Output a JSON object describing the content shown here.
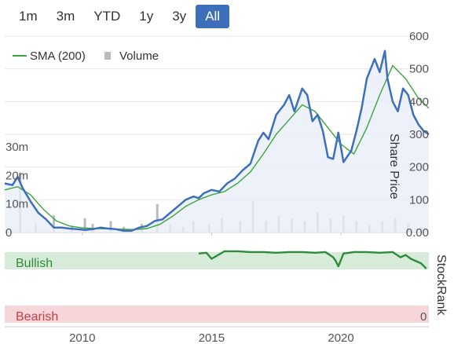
{
  "range_buttons": [
    {
      "label": "1m",
      "active": false
    },
    {
      "label": "3m",
      "active": false
    },
    {
      "label": "YTD",
      "active": false
    },
    {
      "label": "1y",
      "active": false
    },
    {
      "label": "3y",
      "active": false
    },
    {
      "label": "All",
      "active": true
    }
  ],
  "legend": {
    "sma_label": "SMA (200)",
    "volume_label": "Volume"
  },
  "stockrank": {
    "title": "StockRank",
    "bullish_label": "Bullish",
    "bearish_label": "Bearish",
    "zero_label": "0"
  },
  "colors": {
    "price": "#3e6fba",
    "sma": "#3aa63a",
    "volume": "#bbbbbb",
    "bullish": "#d6ecd8",
    "bearish": "#f6d6d8",
    "rank": "#2f8a3c",
    "active_button": "#3e6fba"
  },
  "chart_data": {
    "type": "line",
    "title": "",
    "x_ticks": [
      "2010",
      "2015",
      "2020"
    ],
    "xlim": [
      2007.0,
      2023.4
    ],
    "price_axis": {
      "title": "Share Price",
      "ticks": [
        "0.00",
        "100",
        "200",
        "300",
        "400",
        "500",
        "600"
      ],
      "ylim": [
        0,
        600
      ]
    },
    "volume_axis": {
      "ticks": [
        "0",
        "10m",
        "20m",
        "30m"
      ],
      "ylim": [
        0,
        30
      ]
    },
    "series": [
      {
        "name": "Share Price",
        "x": [
          2007.0,
          2007.3,
          2007.5,
          2007.7,
          2008.0,
          2008.3,
          2008.6,
          2008.9,
          2009.2,
          2009.5,
          2009.8,
          2010.1,
          2010.4,
          2010.7,
          2011.0,
          2011.3,
          2011.6,
          2011.9,
          2012.2,
          2012.5,
          2012.8,
          2013.1,
          2013.4,
          2013.7,
          2014.0,
          2014.3,
          2014.5,
          2014.7,
          2015.0,
          2015.3,
          2015.6,
          2015.9,
          2016.2,
          2016.5,
          2016.8,
          2017.0,
          2017.2,
          2017.5,
          2017.8,
          2018.0,
          2018.2,
          2018.5,
          2018.7,
          2018.9,
          2019.1,
          2019.3,
          2019.5,
          2019.7,
          2019.9,
          2020.1,
          2020.4,
          2020.6,
          2020.8,
          2021.0,
          2021.3,
          2021.5,
          2021.7,
          2021.8,
          2022.0,
          2022.2,
          2022.4,
          2022.6,
          2022.8,
          2023.0,
          2023.2,
          2023.4
        ],
        "values": [
          150,
          145,
          170,
          135,
          95,
          60,
          40,
          15,
          15,
          12,
          10,
          8,
          10,
          15,
          12,
          10,
          5,
          5,
          15,
          20,
          35,
          40,
          60,
          80,
          100,
          110,
          105,
          120,
          130,
          125,
          150,
          165,
          190,
          210,
          280,
          305,
          285,
          360,
          390,
          420,
          370,
          440,
          420,
          340,
          360,
          310,
          230,
          225,
          305,
          215,
          250,
          310,
          380,
          470,
          530,
          490,
          555,
          470,
          400,
          370,
          440,
          420,
          360,
          330,
          310,
          300
        ],
        "color": "#3e6fba"
      },
      {
        "name": "SMA (200)",
        "x": [
          2007.0,
          2007.5,
          2008.0,
          2008.5,
          2009.0,
          2009.5,
          2010.0,
          2010.5,
          2011.0,
          2011.5,
          2012.0,
          2012.5,
          2013.0,
          2013.5,
          2014.0,
          2014.5,
          2015.0,
          2015.5,
          2016.0,
          2016.5,
          2017.0,
          2017.5,
          2018.0,
          2018.5,
          2019.0,
          2019.5,
          2020.0,
          2020.5,
          2021.0,
          2021.5,
          2022.0,
          2022.5,
          2023.0,
          2023.4
        ],
        "values": [
          130,
          140,
          115,
          70,
          35,
          20,
          14,
          12,
          11,
          10,
          9,
          12,
          25,
          50,
          80,
          100,
          115,
          125,
          150,
          185,
          240,
          300,
          345,
          390,
          370,
          320,
          270,
          240,
          320,
          420,
          510,
          470,
          410,
          380
        ],
        "color": "#3aa63a"
      },
      {
        "name": "Volume",
        "x": [
          2007.6,
          2008.2,
          2008.9,
          2009.6,
          2010.1,
          2010.4,
          2011.1,
          2011.6,
          2012.3,
          2012.9,
          2013.4,
          2013.9,
          2014.3,
          2014.9,
          2015.4,
          2016.1,
          2016.6,
          2017.1,
          2017.6,
          2018.1,
          2018.6,
          2019.1,
          2019.6,
          2020.1,
          2020.6,
          2021.1,
          2021.6,
          2022.1,
          2022.6,
          2023.1
        ],
        "values": [
          21,
          3,
          6,
          2,
          5,
          3,
          4,
          2,
          3,
          10,
          3,
          2,
          4,
          3,
          5,
          4,
          11,
          4,
          6,
          5,
          4,
          7,
          5,
          6,
          4,
          3,
          4,
          5,
          3,
          2
        ],
        "color": "#bbbbbb"
      }
    ],
    "stockrank_series": {
      "x": [
        2014.5,
        2014.8,
        2015.0,
        2015.5,
        2016.0,
        2016.5,
        2017.0,
        2017.5,
        2018.0,
        2018.5,
        2019.0,
        2019.4,
        2019.7,
        2019.8,
        2019.9,
        2020.1,
        2020.5,
        2021.0,
        2021.5,
        2022.0,
        2022.3,
        2022.5,
        2022.7,
        2022.9,
        2023.1,
        2023.3
      ],
      "values": [
        95,
        96,
        88,
        98,
        98,
        97,
        97,
        96,
        97,
        97,
        96,
        97,
        90,
        85,
        78,
        95,
        97,
        97,
        96,
        97,
        90,
        93,
        88,
        85,
        82,
        75
      ]
    }
  }
}
